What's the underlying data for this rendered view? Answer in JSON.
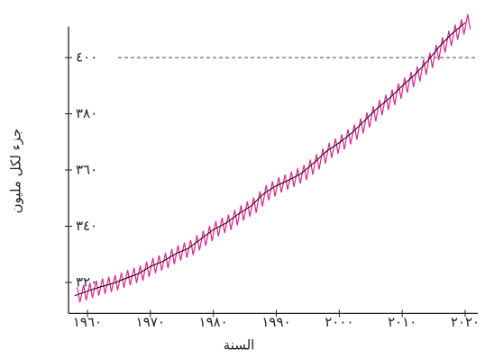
{
  "chart_data": {
    "type": "line",
    "xlabel": "السنة",
    "ylabel": "جزء لكل مليون",
    "xlim": [
      1957,
      2022
    ],
    "ylim": [
      309,
      411
    ],
    "xticks": [
      {
        "value": 1960,
        "label": "١٩٦٠"
      },
      {
        "value": 1970,
        "label": "١٩٧٠"
      },
      {
        "value": 1980,
        "label": "١٩٨٠"
      },
      {
        "value": 1990,
        "label": "١٩٩٠"
      },
      {
        "value": 2000,
        "label": "٢٠٠٠"
      },
      {
        "value": 2010,
        "label": "٢٠١٠"
      },
      {
        "value": 2020,
        "label": "٢٠٢٠"
      }
    ],
    "yticks": [
      {
        "value": 320,
        "label": "٣٢٠"
      },
      {
        "value": 340,
        "label": "٣٤٠"
      },
      {
        "value": 360,
        "label": "٣٦٠"
      },
      {
        "value": 380,
        "label": "٣٨٠"
      },
      {
        "value": 400,
        "label": "٤٠٠"
      }
    ],
    "hline": 400,
    "series": [
      {
        "color": "#e0218a",
        "x": [
          1958.4,
          1958.8,
          1959.4,
          1959.8,
          1960.4,
          1960.8,
          1961.4,
          1961.8,
          1962.4,
          1962.8,
          1963.4,
          1963.8,
          1964.4,
          1964.8,
          1965.4,
          1965.8,
          1966.4,
          1966.8,
          1967.4,
          1967.8,
          1968.4,
          1968.8,
          1969.4,
          1969.8,
          1970.4,
          1970.8,
          1971.4,
          1971.8,
          1972.4,
          1972.8,
          1973.4,
          1973.8,
          1974.4,
          1974.8,
          1975.4,
          1975.8,
          1976.4,
          1976.8,
          1977.4,
          1977.8,
          1978.4,
          1978.8,
          1979.4,
          1979.8,
          1980.4,
          1980.8,
          1981.4,
          1981.8,
          1982.4,
          1982.8,
          1983.4,
          1983.8,
          1984.4,
          1984.8,
          1985.4,
          1985.8,
          1986.4,
          1986.8,
          1987.4,
          1987.8,
          1988.4,
          1988.8,
          1989.4,
          1989.8,
          1990.4,
          1990.8,
          1991.4,
          1991.8,
          1992.4,
          1992.8,
          1993.4,
          1993.8,
          1994.4,
          1994.8,
          1995.4,
          1995.8,
          1996.4,
          1996.8,
          1997.4,
          1997.8,
          1998.4,
          1998.8,
          1999.4,
          1999.8,
          2000.4,
          2000.8,
          2001.4,
          2001.8,
          2002.4,
          2002.8,
          2003.4,
          2003.8,
          2004.4,
          2004.8,
          2005.4,
          2005.8,
          2006.4,
          2006.8,
          2007.4,
          2007.8,
          2008.4,
          2008.8,
          2009.4,
          2009.8,
          2010.4,
          2010.8,
          2011.4,
          2011.8,
          2012.4,
          2012.8,
          2013.4,
          2013.8,
          2014.4,
          2014.8,
          2015.4,
          2015.8,
          2016.4,
          2016.8,
          2017.4,
          2017.8,
          2018.4,
          2018.8,
          2019.4,
          2019.8,
          2020.4,
          2020.8
        ],
        "values": [
          318.3,
          312.9,
          319.1,
          313.7,
          319.9,
          314.5,
          320.7,
          315.3,
          321.4,
          316.0,
          322.0,
          316.6,
          322.6,
          317.2,
          323.5,
          318.1,
          324.4,
          319.0,
          325.2,
          319.8,
          326.0,
          320.6,
          327.4,
          322.0,
          328.7,
          323.3,
          329.6,
          324.2,
          330.5,
          325.1,
          331.9,
          326.5,
          333.2,
          327.8,
          334.2,
          328.8,
          335.1,
          329.7,
          336.8,
          331.4,
          338.4,
          333.0,
          340.1,
          334.7,
          341.8,
          336.4,
          343.0,
          337.6,
          344.1,
          338.7,
          345.8,
          340.4,
          347.4,
          342.0,
          348.8,
          343.4,
          350.2,
          344.8,
          352.4,
          347.0,
          354.6,
          349.2,
          356.0,
          350.6,
          357.4,
          352.0,
          358.4,
          353.0,
          359.4,
          354.0,
          360.6,
          355.2,
          361.8,
          356.4,
          363.7,
          358.3,
          365.6,
          360.2,
          367.7,
          362.3,
          369.7,
          364.3,
          371.2,
          365.8,
          372.7,
          367.3,
          374.5,
          369.1,
          376.2,
          370.8,
          378.4,
          373.0,
          380.5,
          375.1,
          382.7,
          377.3,
          384.9,
          379.5,
          386.8,
          381.4,
          388.6,
          383.2,
          390.8,
          385.4,
          392.9,
          387.5,
          394.9,
          389.5,
          396.9,
          391.5,
          399.3,
          393.9,
          401.7,
          396.3,
          404.5,
          399.1,
          407.2,
          401.8,
          409.5,
          404.1,
          411.7,
          406.3,
          413.6,
          408.2,
          415.4,
          410.0
        ]
      },
      {
        "color": "#000000",
        "x": [
          1958,
          1960,
          1962,
          1964,
          1966,
          1968,
          1970,
          1972,
          1974,
          1976,
          1978,
          1980,
          1982,
          1984,
          1986,
          1988,
          1990,
          1992,
          1994,
          1996,
          1998,
          2000,
          2002,
          2004,
          2006,
          2008,
          2010,
          2012,
          2014,
          2016,
          2018,
          2020
        ],
        "values": [
          315.3,
          316.9,
          318.4,
          319.6,
          321.4,
          323.0,
          325.7,
          327.5,
          330.2,
          332.1,
          335.4,
          338.8,
          341.1,
          344.4,
          347.2,
          351.6,
          354.4,
          356.4,
          358.8,
          362.6,
          366.7,
          369.7,
          373.2,
          377.5,
          381.9,
          385.6,
          389.9,
          393.9,
          398.7,
          404.2,
          408.7,
          412.4
        ]
      }
    ]
  }
}
